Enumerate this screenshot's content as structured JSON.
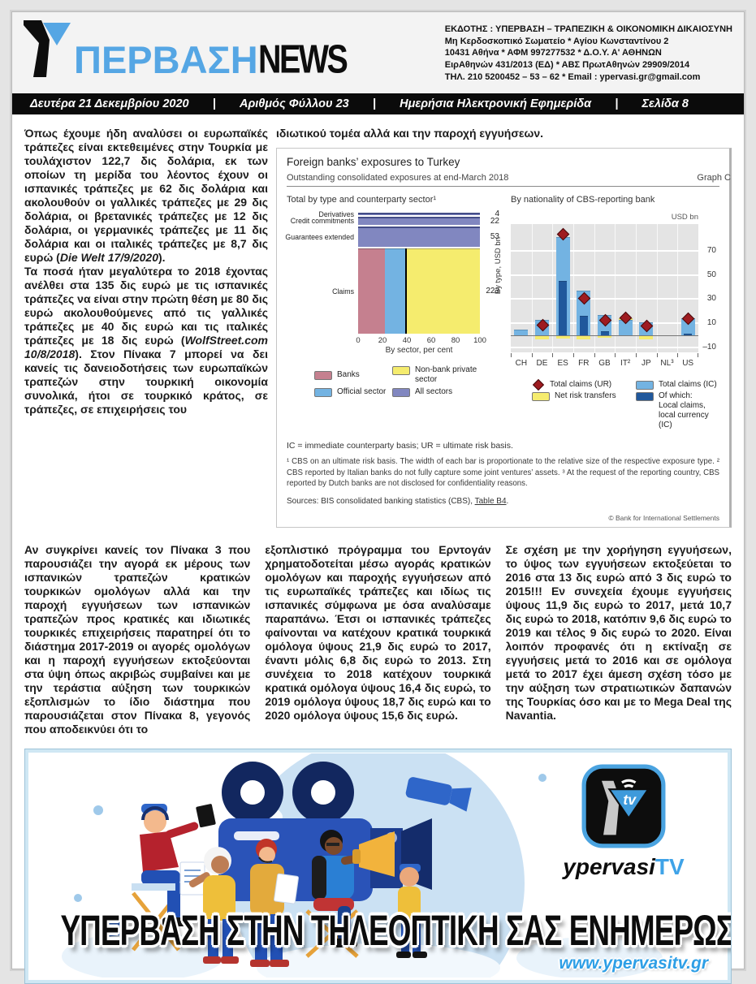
{
  "colors": {
    "accent_blue": "#55a6e4",
    "tv_blue": "#3fa3e8",
    "bar_pink": "#c5808f",
    "bar_lightblue": "#73b3e2",
    "bar_yellow": "#f5ec6e",
    "bar_purple": "#8187c0",
    "bar_darkblue": "#20589c",
    "marker_red": "#9e1b20",
    "plot_bg": "#e4e4e4"
  },
  "header": {
    "logo_blue": "ΠΕΡΒΑΣΗ",
    "logo_black": "NEWS",
    "publisher_lines": [
      "ΕΚΔΟΤΗΣ : ΥΠΕΡΒΑΣΗ – ΤΡΑΠΕΖΙΚΗ & ΟΙΚΟΝΟΜΙΚΗ ΔΙΚΑΙΟΣΥΝΗ",
      "Μη Κερδοσκοπικό Σωματείο  *  Αγίου Κωνσταντίνου 2",
      "10431 Αθήνα  *  ΑΦΜ 997277532  *  Δ.Ο.Υ. Α' ΑΘΗΝΩΝ",
      "ΕιρΑθηνών 431/2013 (ΕΔ)  *  ΑΒΣ ΠρωτΑθηνών 29909/2014",
      "ΤΗΛ. 210 5200452 – 53 – 62  *  Email : ypervasi.gr@gmail.com"
    ]
  },
  "dateline": {
    "date": "Δευτέρα 21 Δεκεμβρίου 2020",
    "issue": "Αριθμός Φύλλου 23",
    "type": "Ημερήσια Ηλεκτρονική Εφημερίδα",
    "page": "Σελίδα 8",
    "sep": "|"
  },
  "article": {
    "p1": [
      {
        "t": "Όπως έχουμε ήδη αναλύσει οι ευρωπαϊκές τράπεζες είναι εκτεθειμένες στην Τουρκία με τουλάχιστον 122,7 δις δολάρια, εκ των οποίων τη μερίδα του λέοντος έχουν οι ισπανικές τράπεζες με 62 δις δολάρια και ακολουθούν οι γαλλικές τράπεζες με 29 δις δολάρια, οι βρετανικές τράπεζες με 12 δις δολάρια, οι γερμανικές τράπεζες με 11 δις δολάρια και οι ιταλικές τράπεζες με 8,7 δις ευρώ ("
      },
      {
        "t": "Die Welt 17/9/2020",
        "i": true
      },
      {
        "t": ")."
      }
    ],
    "p2": [
      {
        "t": "Τα ποσά ήταν μεγαλύτερα το 2018 έχοντας ανέλθει στα 135 δις ευρώ με τις ισπανικές τράπεζες να είναι στην πρώτη θέση με 80 δις ευρώ ακολουθούμενες από τις γαλλικές τράπεζες με 40 δις ευρώ και τις ιταλικές τράπεζες με 18 δις ευρώ ("
      },
      {
        "t": "WolfStreet.com 10/8/2018",
        "i": true
      },
      {
        "t": ").  Στον Πίνακα 7 μπορεί να δει κανείς τις δανειοδοτήσεις των ευρωπαϊκών τραπεζών στην τουρκική οικονομία συνολικά, ήτοι σε τουρκικό κράτος, σε τράπεζες, σε επιχειρήσεις του"
      }
    ],
    "intro_right": "ιδιωτικού τομέα αλλά και την παροχή εγγυήσεων.",
    "p3": "Αν συγκρίνει κανείς τον Πίνακα 3 που παρουσιάζει την αγορά εκ μέρους των ισπανικών τραπεζών κρατικών τουρκικών ομολόγων αλλά και την παροχή  εγγυήσεων των ισπανικών τραπεζών προς κρατικές και ιδιωτικές τουρκικές επιχειρήσεις παρατηρεί ότι το διάστημα 2017-2019 οι αγορές ομολόγων και η παροχή εγγυήσεων εκτοξεύονται στα ύψη όπως ακριβώς συμβαίνει και με την τεράστια αύξηση των τουρκικών εξοπλισμών το ίδιο διάστημα που παρουσιάζεται στον Πίνακα 8, γεγονός που αποδεικνύει ότι το",
    "p4": "εξοπλιστικό πρόγραμμα του Ερντογάν χρηματοδοτείται μέσω αγοράς κρατικών ομολόγων και παροχής εγγυήσεων από τις ευρωπαϊκές τράπεζες και ιδίως τις ισπανικές σύμφωνα με όσα αναλύσαμε παραπάνω. Έτσι οι ισπανικές τράπεζες φαίνονται να κατέχουν κρατικά τουρκικά ομόλογα ύψους 21,9 δις ευρώ το 2017, έναντι μόλις 6,8 δις ευρώ το 2013. Στη συνέχεια το 2018 κατέχουν τουρκικά κρατικά ομόλογα ύψους 16,4 δις ευρώ, το 2019 ομόλογα ύψους  18,7 δις ευρώ και το 2020 ομόλογα ύψους  15,6 δις ευρώ.",
    "p5": "Σε σχέση με την χορήγηση εγγυήσεων, το ύψος των εγγυήσεων εκτοξεύεται το 2016 στα 13 δις ευρώ από 3 δις ευρώ το 2015!!! Εν συνεχεία έχουμε εγγυήσεις ύψους 11,9 δις ευρώ το 2017, μετά 10,7 δις ευρώ το 2018, κατόπιν 9,6 δις ευρώ το 2019 και τέλος 9 δις ευρώ το 2020. Είναι λοιπόν προφανές ότι η εκτίναξη σε εγγυήσεις μετά το 2016 και σε ομόλογα μετά το 2017 έχει άμεση σχέση τόσο με την αύξηση των στρατιωτικών δαπανών της Τουρκίας όσο και με το Mega Deal της Navantia."
  },
  "figure": {
    "title": "Foreign banks’ exposures to Turkey",
    "subtitle": "Outstanding consolidated exposures at end-March 2018",
    "graph_label": "Graph C",
    "note_ic": "IC = immediate counterparty basis; UR = ultimate risk basis.",
    "footnote": "¹  CBS on an ultimate risk basis. The width of each bar is proportionate to the relative size of the respective exposure type.    ²  CBS reported by Italian banks do not fully capture some joint ventures’ assets.    ³  At the request of the reporting country, CBS reported by Dutch banks are not disclosed for confidentiality reasons.",
    "sources_prefix": "Sources: BIS consolidated banking statistics (CBS), ",
    "sources_link": "Table B4",
    "sources_suffix": ".",
    "copyright": "© Bank for International Settlements"
  },
  "chart_data": [
    {
      "type": "bar",
      "subtype": "horizontal-mosaic",
      "title": "Total by type and counterparty sector¹",
      "categories": [
        "Derivatives",
        "Credit commitments",
        "Guarantees extended",
        "Claims"
      ],
      "values_usd_bn": [
        4,
        22,
        53,
        223
      ],
      "claims_sector_split_pct": {
        "Banks": 22,
        "Official sector": 16.5,
        "Non-bank private sector": 61.5
      },
      "xlabel": "By sector, per cent",
      "x_ticks": [
        0,
        20,
        40,
        60,
        80,
        100
      ],
      "ylabel_right": "By type, USD bn",
      "legend": [
        "Banks",
        "Non-bank private sector",
        "Official sector",
        "All sectors"
      ]
    },
    {
      "type": "bar",
      "title": "By nationality of CBS-reporting bank",
      "unit": "USD bn",
      "categories": [
        "CH",
        "DE",
        "ES",
        "FR",
        "GB",
        "IT²",
        "JP",
        "NL³",
        "US"
      ],
      "series": [
        {
          "name": "Total claims (IC)",
          "values": [
            5,
            13,
            81,
            37,
            17,
            13,
            11,
            0,
            14
          ]
        },
        {
          "name": "Local claims, local currency (IC)",
          "values": [
            0,
            0,
            45,
            16,
            3.5,
            0,
            0,
            0,
            1.5
          ]
        },
        {
          "name": "Net risk transfers",
          "values": [
            0,
            -3,
            -2.5,
            -3,
            -2,
            1.5,
            -3,
            0,
            0
          ]
        },
        {
          "name": "Total claims (UR)",
          "marker": "diamond",
          "values": [
            null,
            9,
            84,
            31,
            13,
            15,
            8,
            null,
            14
          ]
        }
      ],
      "y_ticks": [
        70,
        50,
        30,
        10,
        -10
      ],
      "ylim": [
        -14,
        92
      ],
      "legend_right": {
        "ur": "Total claims (UR)",
        "ic": "Total claims (IC)",
        "net": "Net risk transfers",
        "ofwhich_1": "Of which:",
        "ofwhich_2": "Local claims, local currency (IC)"
      }
    }
  ],
  "banner": {
    "headline": "ΥΠΕΡΒΑΣΗ ΣΤΗΝ ΤΗΛΕΟΠΤΙΚΗ ΣΑΣ ΕΝΗΜΕΡΩΣΗ",
    "url": "www.ypervasitv.gr",
    "logo_text_black": "ypervasi",
    "logo_text_blue": "TV",
    "logo_tv_label": "tv"
  }
}
